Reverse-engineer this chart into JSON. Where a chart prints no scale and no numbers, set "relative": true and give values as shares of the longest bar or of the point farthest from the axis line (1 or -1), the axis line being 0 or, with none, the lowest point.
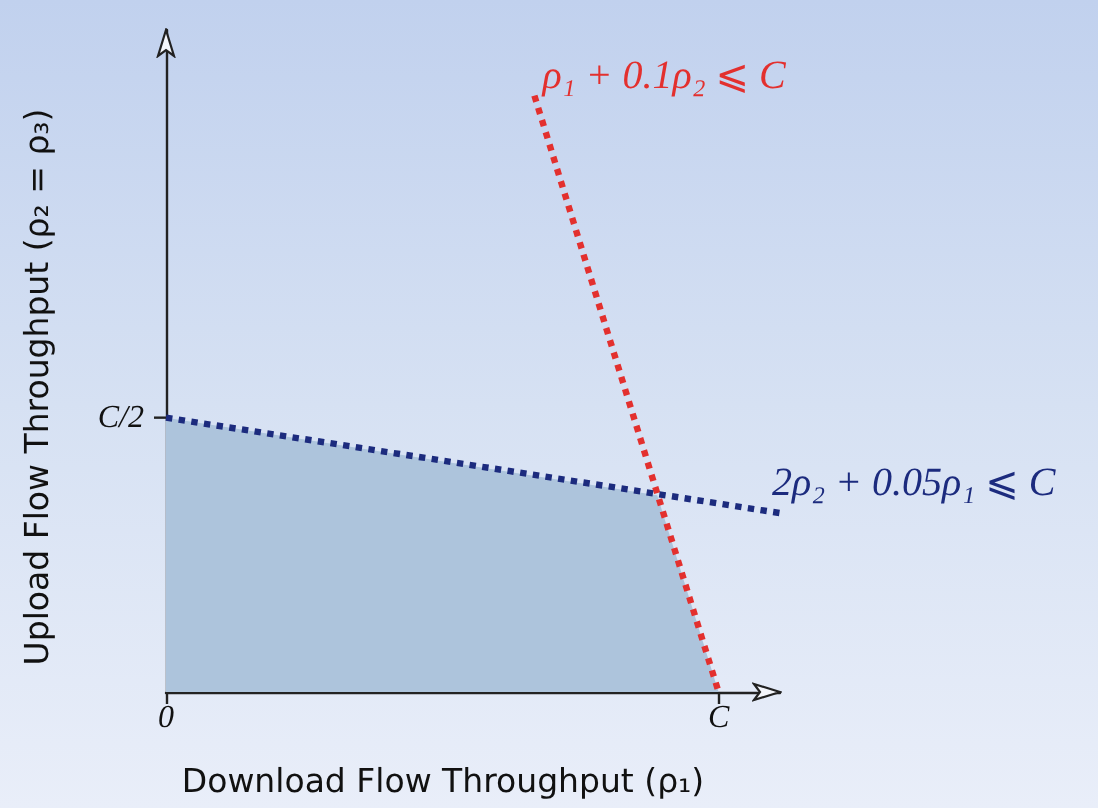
{
  "chart_data": {
    "type": "line",
    "relative": true,
    "xlabel": "Download Flow Throughput (ρ₁)",
    "ylabel": "Upload Flow Throughput (ρ₂ = ρ₃)",
    "marker": "none",
    "categories": [
      "0",
      null,
      null,
      null,
      null,
      null,
      null,
      null,
      null,
      "C",
      null
    ],
    "annotations": [
      {
        "text": "C/2",
        "x": "0",
        "y": 0.46
      }
    ],
    "series": [
      {
        "type": "area",
        "color": "#adc4dc",
        "values": [
          0.46,
          null,
          null,
          null,
          null,
          null,
          null,
          null,
          0.33,
          0,
          null
        ]
      },
      {
        "name": "ρ₁ + 0.1ρ₂ ⩽ C",
        "color": "#e3302e",
        "line_style": "dotted",
        "values": [
          null,
          null,
          null,
          null,
          null,
          null,
          1,
          null,
          null,
          0,
          null
        ]
      },
      {
        "name": "2ρ₂ + 0.05ρ₁ ⩽ C",
        "color": "#1c2b7e",
        "line_style": "dotted",
        "values": [
          0.46,
          null,
          null,
          null,
          null,
          null,
          null,
          null,
          null,
          null,
          0.3
        ]
      }
    ]
  }
}
